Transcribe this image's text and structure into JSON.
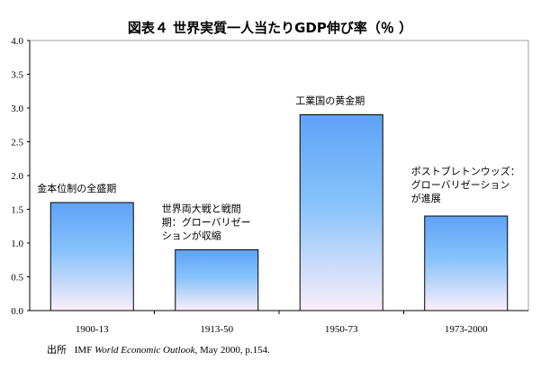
{
  "chart_data": {
    "type": "bar",
    "title": "図表４ 世界実質一人当たりGDP伸び率（％ ）",
    "categories": [
      "1900-13",
      "1913-50",
      "1950-73",
      "1973-2000"
    ],
    "values": [
      1.6,
      0.9,
      2.9,
      1.4
    ],
    "annotations": [
      [
        "金本位制の全盛期"
      ],
      [
        "世界両大戦と戦間",
        "期：グローバリゼー",
        "ションが収縮"
      ],
      [
        "工業国の黄金期"
      ],
      [
        "ポストブレトンウッズ：",
        "グローバリゼーション",
        "が進展"
      ]
    ],
    "xlabel": "",
    "ylabel": "",
    "ylim": [
      0,
      4.0
    ],
    "yticks": [
      "0.0",
      "0.5",
      "1.0",
      "1.5",
      "2.0",
      "2.5",
      "3.0",
      "3.5",
      "4.0"
    ],
    "grid": false,
    "legend": "none",
    "source": {
      "prefix": "出所",
      "org": "IMF ",
      "publication": "World Economic Outlook",
      "rest": ", May 2000, p.154."
    },
    "colors": {
      "bar_top": "#5fa3f7",
      "bar_mid": "#86c2fb",
      "bar_bottom": "#fbeef9",
      "border": "#000000",
      "frame": "#a0a0a0"
    }
  }
}
